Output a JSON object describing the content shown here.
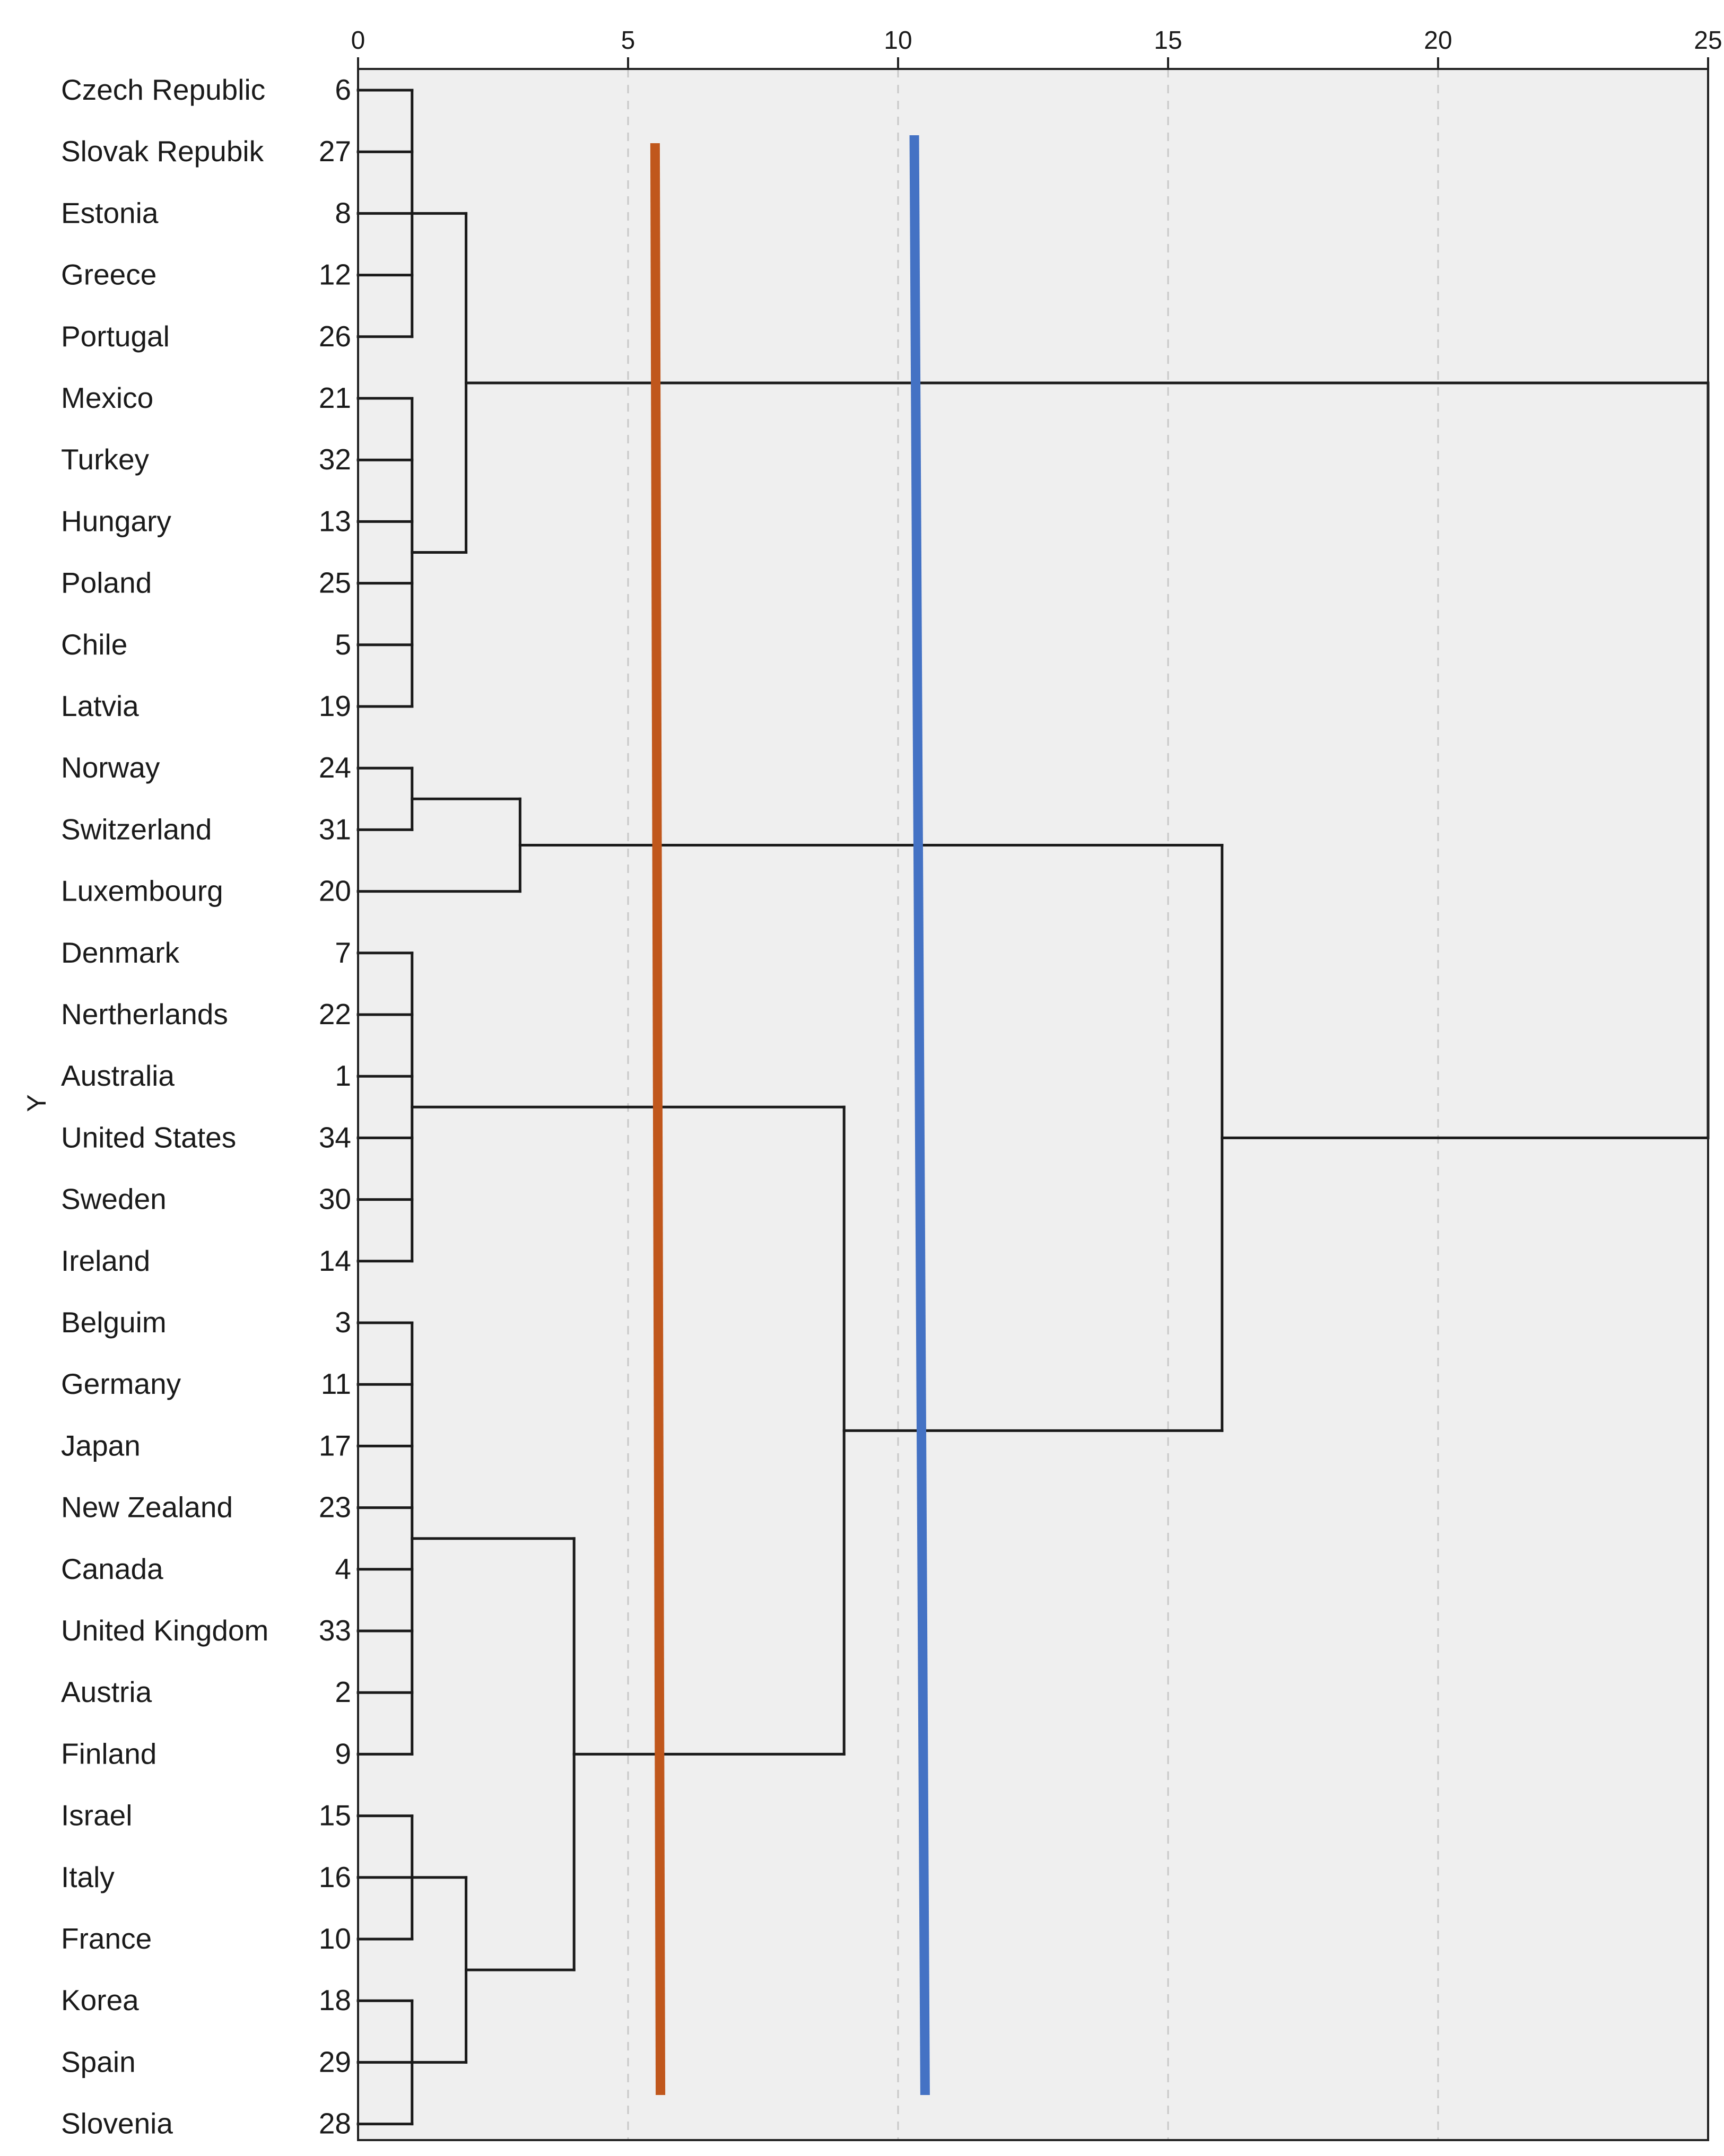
{
  "chart_data": {
    "type": "dendrogram",
    "title": "",
    "xlabel": "",
    "ylabel": "Y",
    "xlim": [
      0,
      25
    ],
    "x_ticks": [
      0,
      5,
      10,
      15,
      20,
      25
    ],
    "grid": true,
    "leaves": [
      {
        "label": "Czech Republic",
        "case": "6"
      },
      {
        "label": "Slovak Repubik",
        "case": "27"
      },
      {
        "label": "Estonia",
        "case": "8"
      },
      {
        "label": "Greece",
        "case": "12"
      },
      {
        "label": "Portugal",
        "case": "26"
      },
      {
        "label": "Mexico",
        "case": "21"
      },
      {
        "label": "Turkey",
        "case": "32"
      },
      {
        "label": "Hungary",
        "case": "13"
      },
      {
        "label": "Poland",
        "case": "25"
      },
      {
        "label": "Chile",
        "case": "5"
      },
      {
        "label": "Latvia",
        "case": "19"
      },
      {
        "label": "Norway",
        "case": "24"
      },
      {
        "label": "Switzerland",
        "case": "31"
      },
      {
        "label": "Luxembourg",
        "case": "20"
      },
      {
        "label": "Denmark",
        "case": "7"
      },
      {
        "label": "Nertherlands",
        "case": "22"
      },
      {
        "label": "Australia",
        "case": "1"
      },
      {
        "label": "United States",
        "case": "34"
      },
      {
        "label": "Sweden",
        "case": "30"
      },
      {
        "label": "Ireland",
        "case": "14"
      },
      {
        "label": "Belguim",
        "case": "3"
      },
      {
        "label": "Germany",
        "case": "11"
      },
      {
        "label": "Japan",
        "case": "17"
      },
      {
        "label": "New Zealand",
        "case": "23"
      },
      {
        "label": "Canada",
        "case": "4"
      },
      {
        "label": "United Kingdom",
        "case": "33"
      },
      {
        "label": "Austria",
        "case": "2"
      },
      {
        "label": "Finland",
        "case": "9"
      },
      {
        "label": "Israel",
        "case": "15"
      },
      {
        "label": "Italy",
        "case": "16"
      },
      {
        "label": "France",
        "case": "10"
      },
      {
        "label": "Korea",
        "case": "18"
      },
      {
        "label": "Spain",
        "case": "29"
      },
      {
        "label": "Slovenia",
        "case": "28"
      }
    ],
    "merges": [
      {
        "id": "A",
        "height": 1,
        "children": [
          0,
          1,
          2,
          3,
          4
        ]
      },
      {
        "id": "B",
        "height": 1,
        "children": [
          5,
          6,
          7,
          8,
          9,
          10
        ]
      },
      {
        "id": "C",
        "height": 2,
        "children": [
          "A",
          "B"
        ]
      },
      {
        "id": "D",
        "height": 1,
        "children": [
          11,
          12
        ]
      },
      {
        "id": "E",
        "height": 3,
        "children": [
          "D",
          13
        ]
      },
      {
        "id": "F",
        "height": 1,
        "children": [
          14,
          15,
          16,
          17,
          18,
          19
        ]
      },
      {
        "id": "G",
        "height": 1,
        "children": [
          20,
          21,
          22,
          23,
          24,
          25,
          26,
          27
        ]
      },
      {
        "id": "H",
        "height": 1,
        "children": [
          28,
          29,
          30
        ]
      },
      {
        "id": "I",
        "height": 1,
        "children": [
          31,
          32,
          33
        ]
      },
      {
        "id": "J",
        "height": 2,
        "children": [
          "H",
          "I"
        ]
      },
      {
        "id": "K",
        "height": 4,
        "children": [
          "G",
          "J"
        ]
      },
      {
        "id": "L",
        "height": 9,
        "children": [
          "F",
          "K"
        ]
      },
      {
        "id": "M",
        "height": 16,
        "children": [
          "E",
          "L"
        ]
      },
      {
        "id": "N",
        "height": 25,
        "children": [
          "C",
          "M"
        ]
      }
    ],
    "cut_lines": [
      {
        "name": "orange-cut",
        "color": "#c0571c",
        "x_top": 5.5,
        "x_bottom": 5.6
      },
      {
        "name": "blue-cut",
        "color": "#4472c4",
        "x_top": 10.3,
        "x_bottom": 10.5
      }
    ]
  },
  "colors": {
    "plot_background": "#efefef",
    "frame": "#222222",
    "grid": "#c8c8c8",
    "tree": "#1a1a1a"
  }
}
